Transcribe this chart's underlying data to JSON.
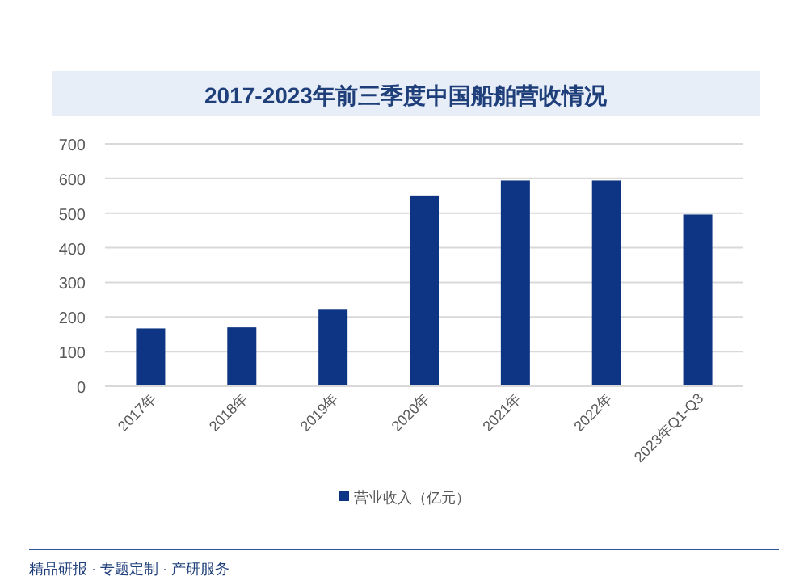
{
  "chart_data": {
    "type": "bar",
    "title": "2017-2023年前三季度中国船舶营收情况",
    "categories": [
      "2017年",
      "2018年",
      "2019年",
      "2020年",
      "2021年",
      "2022年",
      "2023年Q1-Q3"
    ],
    "series": [
      {
        "name": "营业收入（亿元）",
        "color": "#0e3584",
        "values": [
          167,
          170,
          221,
          551,
          594,
          594,
          496
        ]
      }
    ],
    "ylim": [
      0,
      700
    ],
    "yticks": [
      0,
      100,
      200,
      300,
      400,
      500,
      600,
      700
    ],
    "grid": "y",
    "legend": "bottom",
    "annotations": [
      "精品研报 · 专题定制 · 产研服务"
    ]
  }
}
